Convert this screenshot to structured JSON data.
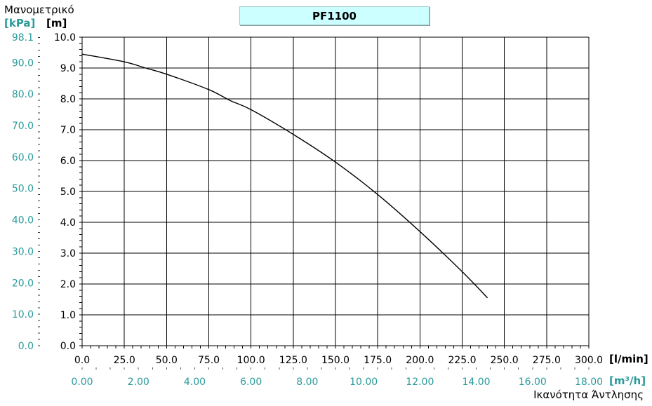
{
  "chart_data": {
    "type": "line",
    "title": "PF1100",
    "ylabel_title": "Μανομετρικό",
    "y_unit_primary": "[m]",
    "y_unit_secondary": "[kPa]",
    "x_unit_primary": "[l/min]",
    "x_unit_secondary": "[m³/h]",
    "xlabel": "Ικανότητα Άντλησης",
    "xlim": [
      0,
      300
    ],
    "ylim": [
      0,
      10
    ],
    "grid": true,
    "x_ticks": [
      "0.0",
      "25.0",
      "50.0",
      "75.0",
      "100.0",
      "125.0",
      "150.0",
      "175.0",
      "200.0",
      "225.0",
      "250.0",
      "275.0",
      "300.0"
    ],
    "x2_ticks": [
      "0.00",
      "2.00",
      "4.00",
      "6.00",
      "8.00",
      "10.00",
      "12.00",
      "14.00",
      "16.00",
      "18.00"
    ],
    "y_ticks": [
      "0.0",
      "1.0",
      "2.0",
      "3.0",
      "4.0",
      "5.0",
      "6.0",
      "7.0",
      "8.0",
      "9.0",
      "10.0"
    ],
    "y2_ticks": [
      "0.0",
      "10.0",
      "20.0",
      "30.0",
      "40.0",
      "50.0",
      "60.0",
      "70.0",
      "80.0",
      "90.0",
      "98.1"
    ],
    "series": [
      {
        "x": [
          0,
          25,
          37.5,
          50,
          75,
          87.5,
          100,
          125,
          150,
          175,
          200,
          225,
          240
        ],
        "y": [
          9.45,
          9.2,
          9.0,
          8.8,
          8.3,
          7.95,
          7.65,
          6.85,
          5.95,
          4.9,
          3.7,
          2.4,
          1.55
        ]
      }
    ],
    "colors": {
      "line": "#000000",
      "grid": "#000000",
      "secondary_axis": "#2a9a9a"
    }
  }
}
